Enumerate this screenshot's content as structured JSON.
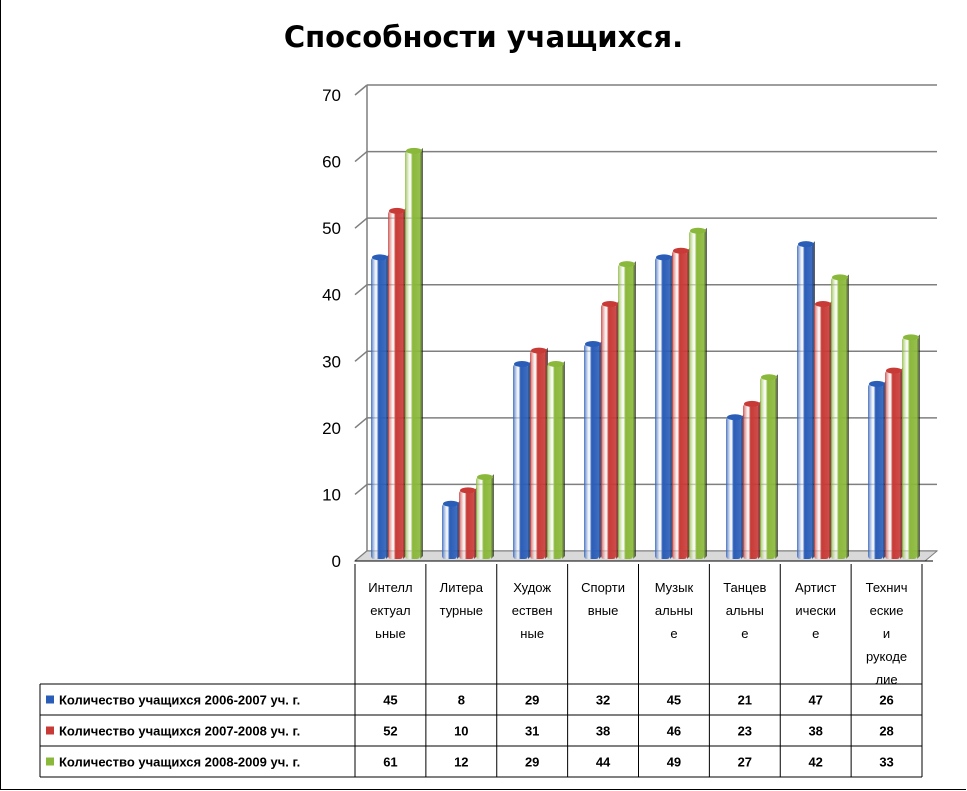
{
  "colors": {
    "series1": "#2a5db8",
    "series2": "#c83a36",
    "series3": "#8ab83a",
    "grid": "#7f7f7f"
  },
  "chart_data": {
    "type": "bar",
    "title": "Способности учащихся.",
    "categories": [
      [
        "Интелл",
        "ектуал",
        "ьные"
      ],
      [
        "Литера",
        "турные"
      ],
      [
        "Худож",
        "ествен",
        "ные"
      ],
      [
        "Спорти",
        "вные"
      ],
      [
        "Музык",
        "альны",
        "е"
      ],
      [
        "Танцев",
        "альны",
        "е"
      ],
      [
        "Артист",
        "ически",
        "е"
      ],
      [
        "Технич",
        "еские",
        "и",
        "рукоде",
        "лие"
      ]
    ],
    "series": [
      {
        "name": "Количество учащихся 2006-2007 уч. г.",
        "values": [
          45,
          8,
          29,
          32,
          45,
          21,
          47,
          26
        ]
      },
      {
        "name": "Количество учащихся 2007-2008 уч. г.",
        "values": [
          52,
          10,
          31,
          38,
          46,
          23,
          38,
          28
        ]
      },
      {
        "name": "Количество учащихся 2008-2009 уч. г.",
        "values": [
          61,
          12,
          29,
          44,
          49,
          27,
          42,
          33
        ]
      }
    ],
    "yticks": [
      "0",
      "10",
      "20",
      "30",
      "40",
      "50",
      "60",
      "70"
    ],
    "ylim": [
      0,
      70
    ],
    "grid": true,
    "legend": "data-table"
  }
}
